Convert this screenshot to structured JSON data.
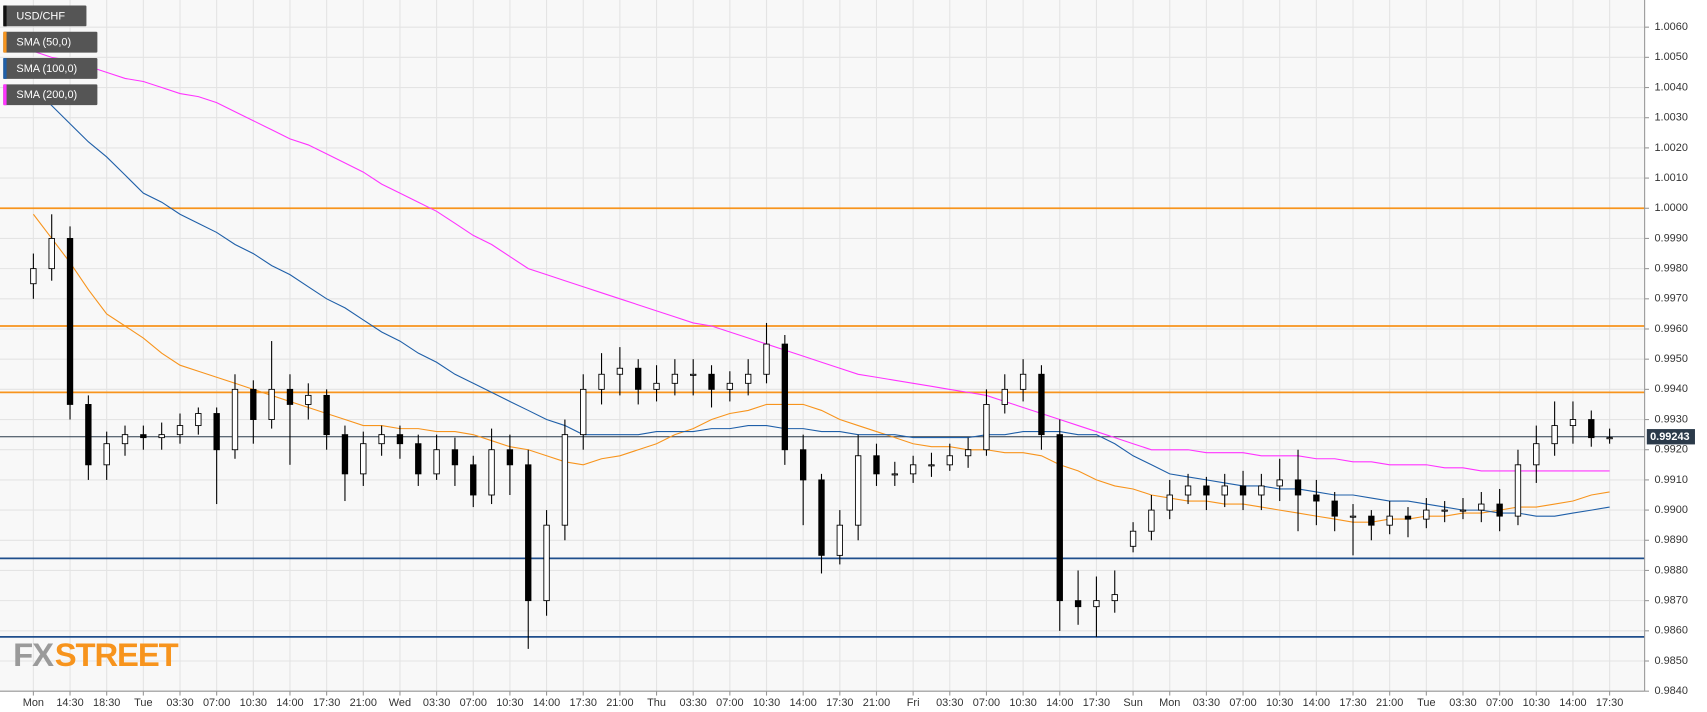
{
  "chart_data": {
    "type": "candlestick",
    "watermark": [
      "FX",
      "STREET"
    ],
    "last_price": 0.99243,
    "ylim": [
      0.984,
      1.0069
    ],
    "yticks": [
      {
        "value": 1.006,
        "label": "1.0060"
      },
      {
        "value": 1.005,
        "label": "1.0050"
      },
      {
        "value": 1.004,
        "label": "1.0040"
      },
      {
        "value": 1.003,
        "label": "1.0030"
      },
      {
        "value": 1.002,
        "label": "1.0020"
      },
      {
        "value": 1.001,
        "label": "1.0010"
      },
      {
        "value": 1.0,
        "label": "1.0000"
      },
      {
        "value": 0.999,
        "label": "0.9990"
      },
      {
        "value": 0.998,
        "label": "0.9980"
      },
      {
        "value": 0.997,
        "label": "0.9970"
      },
      {
        "value": 0.996,
        "label": "0.9960"
      },
      {
        "value": 0.995,
        "label": "0.9950"
      },
      {
        "value": 0.994,
        "label": "0.9940"
      },
      {
        "value": 0.993,
        "label": "0.9930"
      },
      {
        "value": 0.992,
        "label": "0.9920"
      },
      {
        "value": 0.991,
        "label": "0.9910"
      },
      {
        "value": 0.99,
        "label": "0.9900"
      },
      {
        "value": 0.989,
        "label": "0.9890"
      },
      {
        "value": 0.988,
        "label": "0.9880"
      },
      {
        "value": 0.987,
        "label": "0.9870"
      },
      {
        "value": 0.986,
        "label": "0.9860"
      },
      {
        "value": 0.985,
        "label": "0.9850"
      },
      {
        "value": 0.984,
        "label": "0.9840"
      }
    ],
    "grid": true,
    "levels": [
      {
        "value": 1.0,
        "color": "#f7941d"
      },
      {
        "value": 0.9961,
        "color": "#f7941d"
      },
      {
        "value": 0.9939,
        "color": "#f7941d"
      },
      {
        "value": 0.9884,
        "color": "#1f4e8c"
      },
      {
        "value": 0.9858,
        "color": "#1f4e8c"
      }
    ],
    "categories": [
      "Mon",
      null,
      "14:30",
      null,
      "18:30",
      null,
      "Tue",
      null,
      "03:30",
      null,
      "07:00",
      null,
      "10:30",
      null,
      "14:00",
      null,
      "17:30",
      null,
      "21:00",
      null,
      "Wed",
      null,
      "03:30",
      null,
      "07:00",
      null,
      "10:30",
      null,
      "14:00",
      null,
      "17:30",
      null,
      "21:00",
      null,
      "Thu",
      null,
      "03:30",
      null,
      "07:00",
      null,
      "10:30",
      null,
      "14:00",
      null,
      "17:30",
      null,
      "21:00",
      null,
      "Fri",
      null,
      "03:30",
      null,
      "07:00",
      null,
      "10:30",
      null,
      "14:00",
      null,
      "17:30",
      null,
      "Sun",
      null,
      "Mon",
      null,
      "03:30",
      null,
      "07:00",
      null,
      "10:30",
      null,
      "14:00",
      null,
      "17:30",
      null,
      "21:00",
      null,
      "Tue",
      null,
      "03:30",
      null,
      "07:00",
      null,
      "10:30",
      null,
      "14:00",
      null,
      "17:30"
    ],
    "series": [
      {
        "name": "USD/CHF",
        "color": "#000000",
        "open": [
          0.9975,
          0.998,
          0.999,
          0.9935,
          0.9915,
          0.9922,
          0.9925,
          0.9924,
          0.9925,
          0.9928,
          0.9932,
          0.992,
          0.994,
          0.993,
          0.994,
          0.9935,
          0.9938,
          0.9925,
          0.9912,
          0.9922,
          0.9925,
          0.9922,
          0.9912,
          0.992,
          0.9915,
          0.9905,
          0.992,
          0.9915,
          0.987,
          0.9895,
          0.9925,
          0.994,
          0.9945,
          0.9947,
          0.994,
          0.9942,
          0.9945,
          0.9945,
          0.994,
          0.9942,
          0.9945,
          0.9955,
          0.992,
          0.991,
          0.9885,
          0.9895,
          0.9918,
          0.9912,
          0.9912,
          0.9915,
          0.9915,
          0.9918,
          0.992,
          0.9935,
          0.994,
          0.9945,
          0.9925,
          0.987,
          0.9868,
          0.987,
          0.9888,
          0.9893,
          0.99,
          0.9905,
          0.9908,
          0.9905,
          0.9908,
          0.9905,
          0.9908,
          0.991,
          0.9905,
          0.9903,
          0.9898,
          0.9898,
          0.9895,
          0.9898,
          0.9897,
          0.99,
          0.99,
          0.99,
          0.9902,
          0.9898,
          0.9915,
          0.9922,
          0.9928,
          0.993,
          0.9924
        ],
        "high": [
          0.9985,
          0.9998,
          0.9994,
          0.9938,
          0.9926,
          0.9928,
          0.9928,
          0.9929,
          0.9932,
          0.9934,
          0.9934,
          0.9945,
          0.9943,
          0.9956,
          0.9945,
          0.9942,
          0.994,
          0.9928,
          0.9926,
          0.9928,
          0.9928,
          0.9925,
          0.9925,
          0.9924,
          0.9918,
          0.9927,
          0.9925,
          0.992,
          0.99,
          0.993,
          0.9945,
          0.9952,
          0.9954,
          0.995,
          0.9948,
          0.995,
          0.995,
          0.9948,
          0.9946,
          0.995,
          0.9962,
          0.9958,
          0.9925,
          0.9912,
          0.99,
          0.9925,
          0.9922,
          0.9916,
          0.9918,
          0.9919,
          0.9922,
          0.9924,
          0.994,
          0.9945,
          0.995,
          0.9948,
          0.993,
          0.988,
          0.9878,
          0.988,
          0.9896,
          0.9905,
          0.991,
          0.9912,
          0.9911,
          0.9912,
          0.9913,
          0.9912,
          0.9917,
          0.992,
          0.991,
          0.9906,
          0.9902,
          0.99,
          0.9903,
          0.9901,
          0.9904,
          0.9903,
          0.9904,
          0.9906,
          0.9907,
          0.992,
          0.9928,
          0.9936,
          0.9936,
          0.9933,
          0.9927
        ],
        "low": [
          0.997,
          0.9976,
          0.993,
          0.991,
          0.991,
          0.9918,
          0.992,
          0.992,
          0.9922,
          0.9925,
          0.9902,
          0.9917,
          0.9922,
          0.9927,
          0.9915,
          0.993,
          0.992,
          0.9903,
          0.9908,
          0.9918,
          0.9917,
          0.9908,
          0.991,
          0.9908,
          0.9901,
          0.9902,
          0.9905,
          0.9854,
          0.9865,
          0.989,
          0.992,
          0.9935,
          0.9938,
          0.9935,
          0.9936,
          0.9938,
          0.9938,
          0.9934,
          0.9936,
          0.9938,
          0.9942,
          0.9915,
          0.9895,
          0.9879,
          0.9882,
          0.989,
          0.9908,
          0.9908,
          0.9909,
          0.9911,
          0.9913,
          0.9914,
          0.9918,
          0.9932,
          0.9936,
          0.992,
          0.986,
          0.9862,
          0.9858,
          0.9866,
          0.9886,
          0.989,
          0.9897,
          0.9902,
          0.99,
          0.9901,
          0.99,
          0.99,
          0.9903,
          0.9893,
          0.9895,
          0.9893,
          0.9885,
          0.989,
          0.9892,
          0.9891,
          0.9894,
          0.9896,
          0.9897,
          0.9896,
          0.9893,
          0.9895,
          0.9909,
          0.9918,
          0.9922,
          0.9921,
          0.9922
        ],
        "close": [
          0.998,
          0.999,
          0.9935,
          0.9915,
          0.9922,
          0.9925,
          0.9924,
          0.9925,
          0.9928,
          0.9932,
          0.992,
          0.994,
          0.993,
          0.994,
          0.9935,
          0.9938,
          0.9925,
          0.9912,
          0.9922,
          0.9925,
          0.9922,
          0.9912,
          0.992,
          0.9915,
          0.9905,
          0.992,
          0.9915,
          0.987,
          0.9895,
          0.9925,
          0.994,
          0.9945,
          0.9947,
          0.994,
          0.9942,
          0.9945,
          0.9945,
          0.994,
          0.9942,
          0.9945,
          0.9955,
          0.992,
          0.991,
          0.9885,
          0.9895,
          0.9918,
          0.9912,
          0.9912,
          0.9915,
          0.9915,
          0.9918,
          0.992,
          0.9935,
          0.994,
          0.9945,
          0.9925,
          0.987,
          0.9868,
          0.987,
          0.9872,
          0.9893,
          0.99,
          0.9905,
          0.9908,
          0.9905,
          0.9908,
          0.9905,
          0.9908,
          0.991,
          0.9905,
          0.9903,
          0.9898,
          0.9898,
          0.9895,
          0.9898,
          0.9897,
          0.99,
          0.99,
          0.99,
          0.9902,
          0.9898,
          0.9915,
          0.9922,
          0.9928,
          0.993,
          0.9924,
          0.9924
        ]
      },
      {
        "name": "SMA (50,0)",
        "color": "#f7941d",
        "values": [
          0.9998,
          0.999,
          0.9982,
          0.9973,
          0.9965,
          0.9961,
          0.9957,
          0.9952,
          0.9948,
          0.9946,
          0.9944,
          0.9942,
          0.994,
          0.9938,
          0.9936,
          0.9934,
          0.9932,
          0.993,
          0.9928,
          0.9928,
          0.9927,
          0.9927,
          0.9926,
          0.9926,
          0.9925,
          0.9923,
          0.9921,
          0.992,
          0.9918,
          0.9916,
          0.9915,
          0.9917,
          0.9918,
          0.992,
          0.9922,
          0.9925,
          0.9927,
          0.993,
          0.9932,
          0.9933,
          0.9935,
          0.9935,
          0.9935,
          0.9933,
          0.993,
          0.9928,
          0.9926,
          0.9924,
          0.9922,
          0.9921,
          0.9921,
          0.992,
          0.992,
          0.9919,
          0.9919,
          0.9918,
          0.9915,
          0.9913,
          0.991,
          0.9908,
          0.9907,
          0.9905,
          0.9904,
          0.9903,
          0.9903,
          0.9902,
          0.9902,
          0.9901,
          0.99,
          0.9899,
          0.9898,
          0.9897,
          0.9896,
          0.9896,
          0.9897,
          0.9897,
          0.9898,
          0.9898,
          0.9899,
          0.9899,
          0.99,
          0.9901,
          0.9901,
          0.9902,
          0.9903,
          0.9905,
          0.9906
        ]
      },
      {
        "name": "SMA (100,0)",
        "color": "#1f5fa8",
        "values": [
          1.004,
          1.0034,
          1.0028,
          1.0022,
          1.0017,
          1.0011,
          1.0005,
          1.0002,
          0.9998,
          0.9995,
          0.9992,
          0.9988,
          0.9985,
          0.9981,
          0.9978,
          0.9974,
          0.997,
          0.9967,
          0.9963,
          0.9959,
          0.9956,
          0.9952,
          0.9949,
          0.9945,
          0.9942,
          0.9939,
          0.9936,
          0.9933,
          0.993,
          0.9928,
          0.9925,
          0.9925,
          0.9925,
          0.9925,
          0.9926,
          0.9926,
          0.9926,
          0.9927,
          0.9927,
          0.9928,
          0.9928,
          0.9927,
          0.9927,
          0.9926,
          0.9926,
          0.9925,
          0.9925,
          0.9925,
          0.9924,
          0.9924,
          0.9924,
          0.9924,
          0.9925,
          0.9925,
          0.9926,
          0.9926,
          0.9926,
          0.9925,
          0.9925,
          0.9922,
          0.9918,
          0.9915,
          0.9912,
          0.9911,
          0.991,
          0.9909,
          0.9908,
          0.9908,
          0.9907,
          0.9907,
          0.9906,
          0.9905,
          0.9905,
          0.9904,
          0.9903,
          0.9903,
          0.9902,
          0.9901,
          0.99,
          0.99,
          0.9899,
          0.9899,
          0.9898,
          0.9898,
          0.9899,
          0.99,
          0.9901
        ]
      },
      {
        "name": "SMA (200,0)",
        "color": "#ff33ff",
        "values": [
          1.0052,
          1.005,
          1.0049,
          1.0047,
          1.0045,
          1.0043,
          1.0042,
          1.004,
          1.0038,
          1.0037,
          1.0035,
          1.0032,
          1.0029,
          1.0026,
          1.0023,
          1.0021,
          1.0018,
          1.0015,
          1.0012,
          1.0008,
          1.0005,
          1.0002,
          0.9999,
          0.9995,
          0.9991,
          0.9988,
          0.9984,
          0.998,
          0.9978,
          0.9976,
          0.9974,
          0.9972,
          0.997,
          0.9968,
          0.9966,
          0.9964,
          0.9962,
          0.9961,
          0.9959,
          0.9957,
          0.9955,
          0.9953,
          0.9951,
          0.9949,
          0.9947,
          0.9945,
          0.9944,
          0.9943,
          0.9942,
          0.9941,
          0.994,
          0.9939,
          0.9938,
          0.9936,
          0.9934,
          0.9932,
          0.993,
          0.9928,
          0.9926,
          0.9924,
          0.9922,
          0.992,
          0.992,
          0.992,
          0.9919,
          0.9919,
          0.9919,
          0.9918,
          0.9918,
          0.9918,
          0.9917,
          0.9917,
          0.9916,
          0.9916,
          0.9915,
          0.9915,
          0.9915,
          0.9914,
          0.9914,
          0.9913,
          0.9913,
          0.9913,
          0.9913,
          0.9913,
          0.9913,
          0.9913,
          0.9913
        ]
      }
    ]
  }
}
